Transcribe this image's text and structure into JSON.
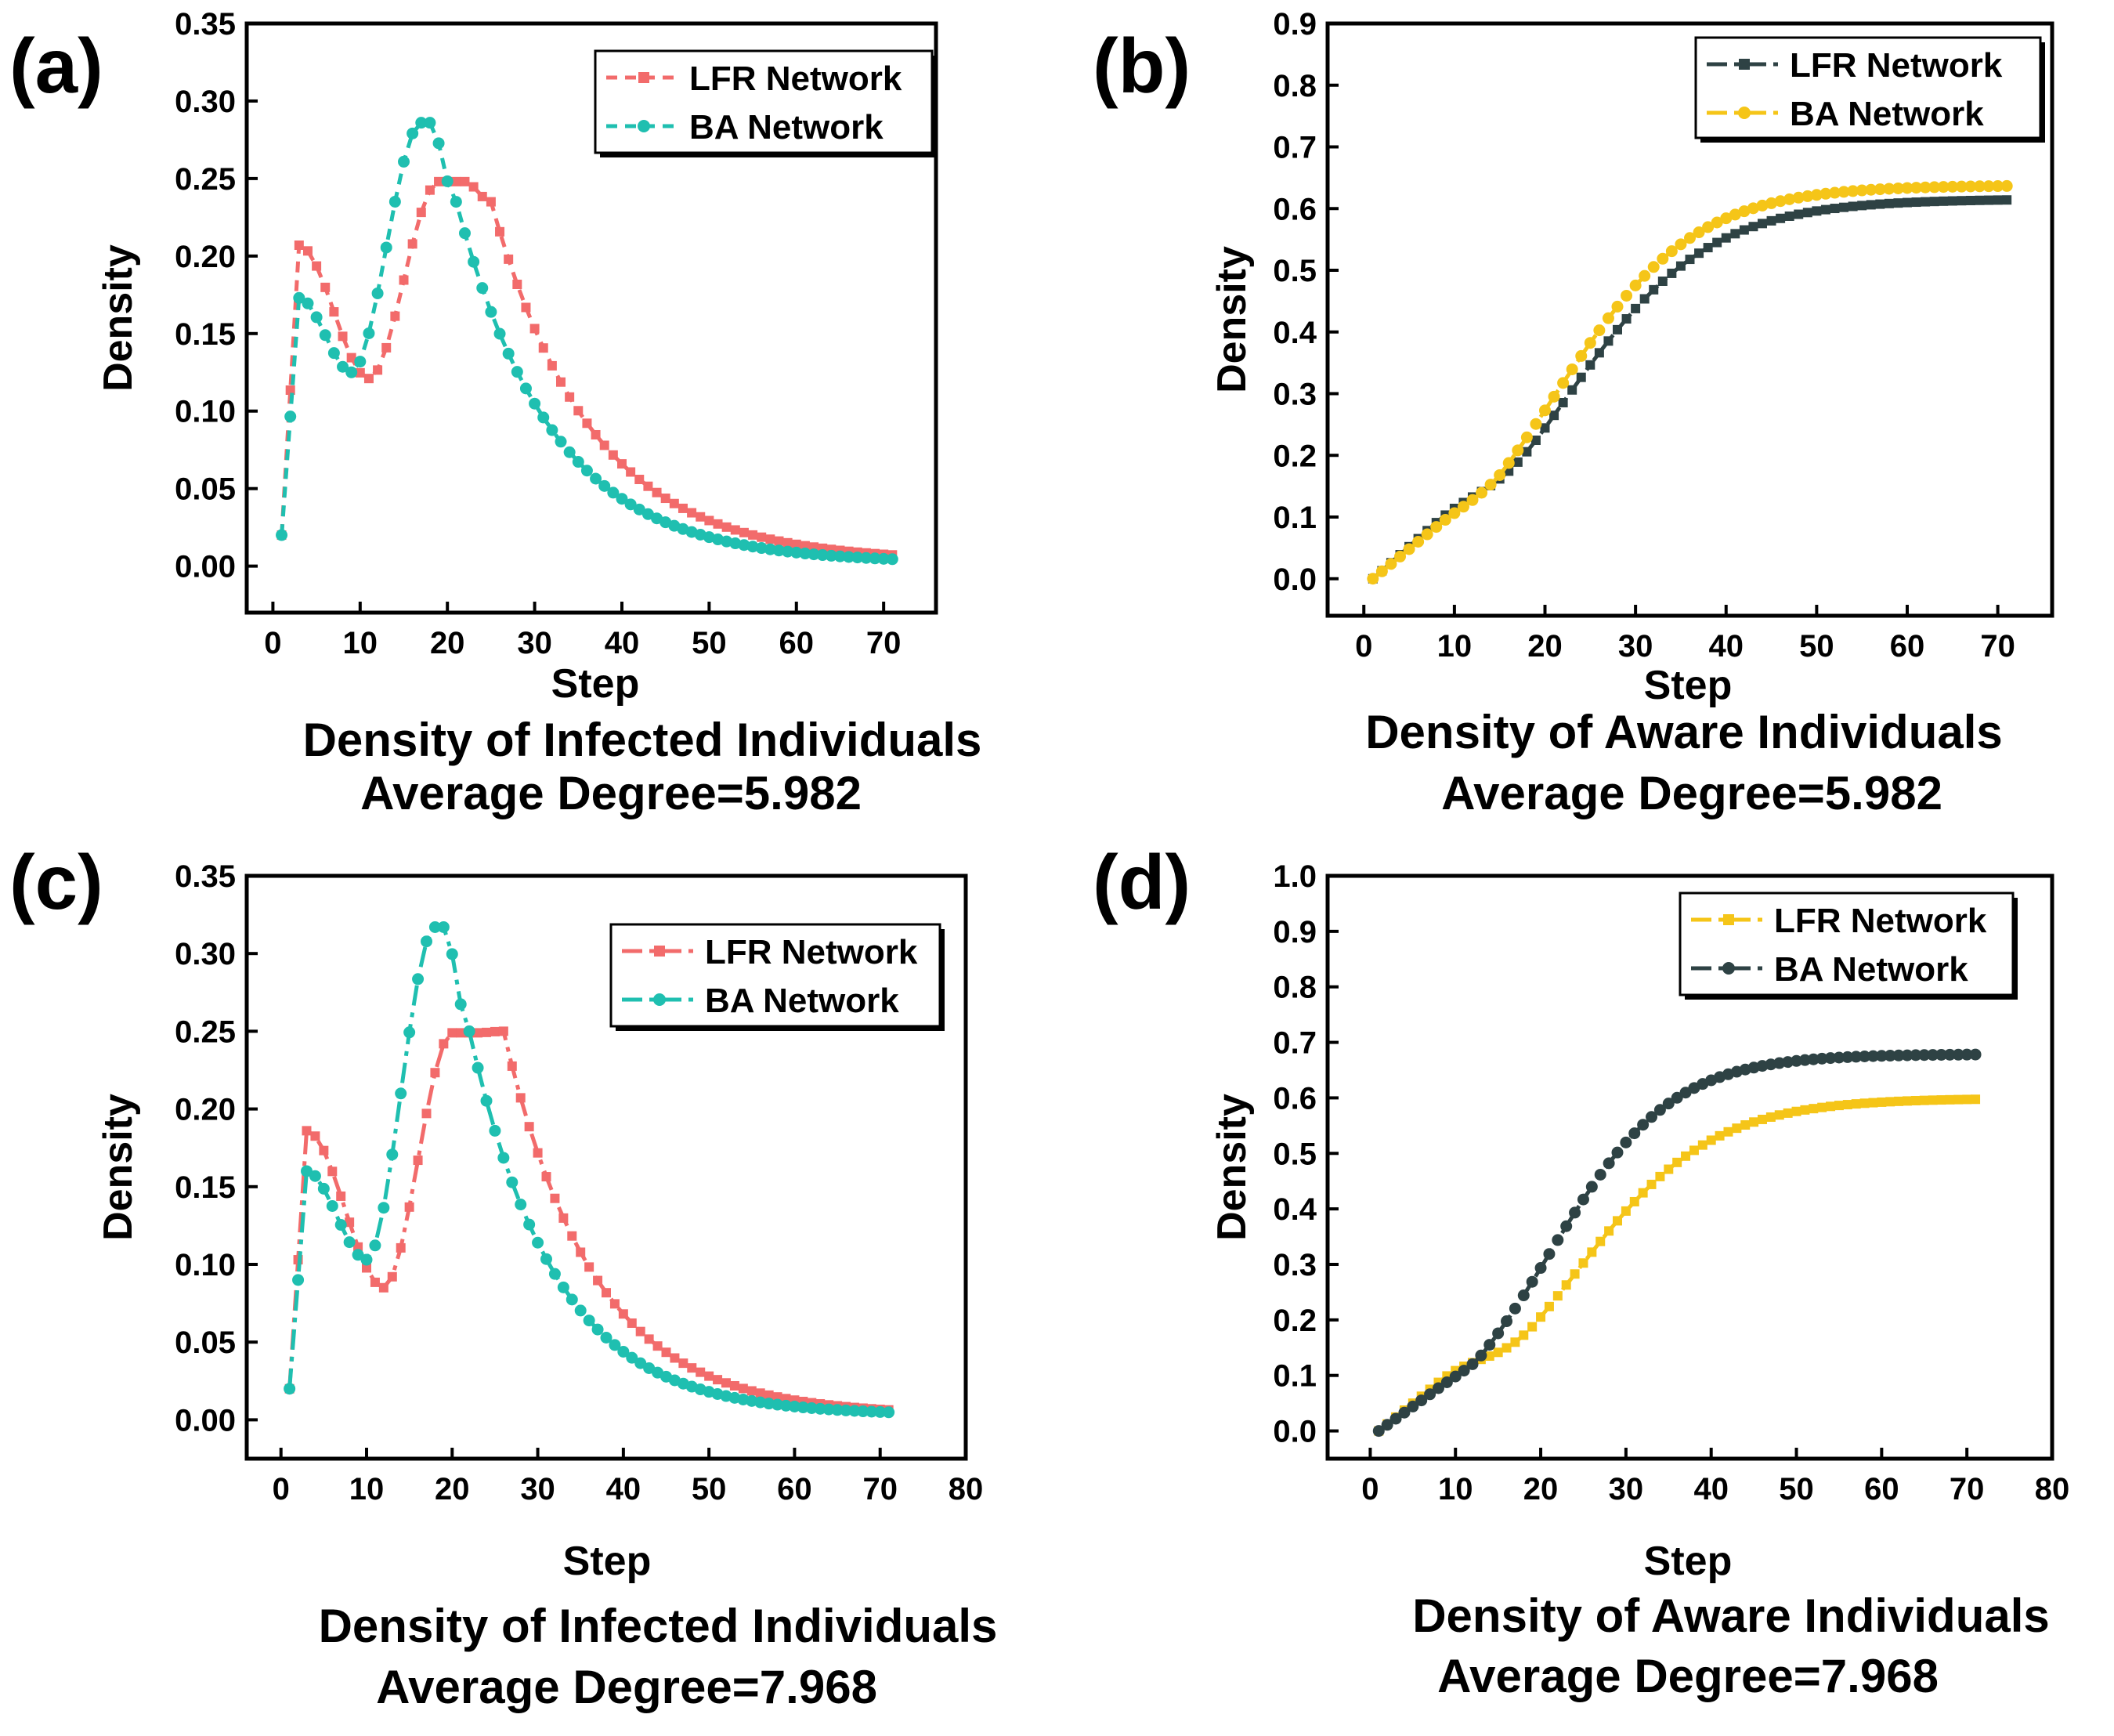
{
  "figure": {
    "panels": [
      {
        "label": "(a)",
        "chart_data": {
          "type": "line",
          "title": "Density of Infected Individuals",
          "subtitle": "Average Degree=5.982",
          "xlabel": "Step",
          "ylabel": "Density",
          "xlim": [
            -3,
            76
          ],
          "ylim": [
            -0.03,
            0.35
          ],
          "xticks": [
            0,
            10,
            20,
            30,
            40,
            50,
            60,
            70
          ],
          "xtick_labels": [
            "0",
            "10",
            "20",
            "30",
            "40",
            "50",
            "60",
            "70"
          ],
          "yticks": [
            0.0,
            0.05,
            0.1,
            0.15,
            0.2,
            0.25,
            0.3,
            0.35
          ],
          "ytick_labels": [
            "0.00",
            "0.05",
            "0.10",
            "0.15",
            "0.20",
            "0.25",
            "0.30",
            "0.35"
          ],
          "grid": false,
          "legend_position": "top-right",
          "curve": "infected",
          "series": [
            {
              "name": "LFR Network",
              "color": "#f26b6b",
              "marker": "square",
              "dash": "dash",
              "shape": {
                "start": 0.02,
                "early_peak": 0.207,
                "early_peak_step": 3,
                "dip": 0.121,
                "dip_step": 11,
                "peak": 0.248,
                "peak_step": 19,
                "peak_flat": 3,
                "end": 0.003,
                "decay_from": 0.235,
                "decay_tau": 11.5
              }
            },
            {
              "name": "BA Network",
              "color": "#1fbfb0",
              "marker": "circle",
              "dash": "dash",
              "shape": {
                "start": 0.02,
                "early_peak": 0.173,
                "early_peak_step": 3,
                "dip": 0.125,
                "dip_step": 9,
                "peak": 0.286,
                "peak_step": 17,
                "peak_flat": 1,
                "end": 0.002,
                "decay_from": 0.235,
                "decay_tau": 11.0
              }
            }
          ]
        }
      },
      {
        "label": "(b)",
        "chart_data": {
          "type": "line",
          "title": "Density of Aware Individuals",
          "subtitle": "Average Degree=5.982",
          "xlabel": "Step",
          "ylabel": "Density",
          "xlim": [
            -4,
            76
          ],
          "ylim": [
            -0.06,
            0.9
          ],
          "xticks": [
            0,
            10,
            20,
            30,
            40,
            50,
            60,
            70
          ],
          "xtick_labels": [
            "0",
            "10",
            "20",
            "30",
            "40",
            "50",
            "60",
            "70"
          ],
          "yticks": [
            0.0,
            0.1,
            0.2,
            0.3,
            0.4,
            0.5,
            0.6,
            0.7,
            0.8,
            0.9
          ],
          "ytick_labels": [
            "0.0",
            "0.1",
            "0.2",
            "0.3",
            "0.4",
            "0.5",
            "0.6",
            "0.7",
            "0.8",
            "0.9"
          ],
          "grid": false,
          "legend_position": "top-right",
          "curve": "aware",
          "series": [
            {
              "name": "LFR Network",
              "color": "#2e4244",
              "marker": "square",
              "dash": "dashdot",
              "shape": {
                "final": 0.66,
                "midpoint": 22.0,
                "rate": 0.125,
                "early_slope": 0.013
              }
            },
            {
              "name": "BA Network",
              "color": "#f5c518",
              "marker": "circle",
              "dash": "dashdot",
              "shape": {
                "final": 0.685,
                "midpoint": 21.0,
                "rate": 0.13,
                "early_slope": 0.012
              }
            }
          ]
        }
      },
      {
        "label": "(c)",
        "chart_data": {
          "type": "line",
          "title": "Density of Infected Individuals",
          "subtitle": "Average Degree=7.968",
          "xlabel": "Step",
          "ylabel": "Density",
          "xlim": [
            -4,
            80
          ],
          "ylim": [
            -0.025,
            0.35
          ],
          "xticks": [
            0,
            10,
            20,
            30,
            40,
            50,
            60,
            70,
            80
          ],
          "xtick_labels": [
            "0",
            "10",
            "20",
            "30",
            "40",
            "50",
            "60",
            "70",
            "80"
          ],
          "yticks": [
            0.0,
            0.05,
            0.1,
            0.15,
            0.2,
            0.25,
            0.3,
            0.35
          ],
          "ytick_labels": [
            "0.00",
            "0.05",
            "0.10",
            "0.15",
            "0.20",
            "0.25",
            "0.30",
            "0.35"
          ],
          "grid": false,
          "legend_position": "top-right",
          "curve": "infected",
          "series": [
            {
              "name": "LFR Network",
              "color": "#f26b6b",
              "marker": "square",
              "dash": "dashdot",
              "shape": {
                "start": 0.02,
                "early_peak": 0.186,
                "early_peak_step": 3,
                "dip": 0.085,
                "dip_step": 12,
                "peak": 0.249,
                "peak_step": 20,
                "peak_flat": 3,
                "end": 0.003,
                "decay_from": 0.25,
                "decay_tau": 10.5
              }
            },
            {
              "name": "BA Network",
              "color": "#1fbfb0",
              "marker": "circle",
              "dash": "dashdot",
              "shape": {
                "start": 0.02,
                "early_peak": 0.16,
                "early_peak_step": 3,
                "dip": 0.103,
                "dip_step": 10,
                "peak": 0.317,
                "peak_step": 18,
                "peak_flat": 1,
                "end": 0.003,
                "decay_from": 0.25,
                "decay_tau": 10.0
              }
            }
          ]
        }
      },
      {
        "label": "(d)",
        "chart_data": {
          "type": "line",
          "title": "Density of Aware Individuals",
          "subtitle": "Average Degree=7.968",
          "xlabel": "Step",
          "ylabel": "Density",
          "xlim": [
            -5,
            80
          ],
          "ylim": [
            -0.05,
            1.0
          ],
          "xticks": [
            0,
            10,
            20,
            30,
            40,
            50,
            60,
            70,
            80
          ],
          "xtick_labels": [
            "0",
            "10",
            "20",
            "30",
            "40",
            "50",
            "60",
            "70",
            "80"
          ],
          "yticks": [
            0.0,
            0.1,
            0.2,
            0.3,
            0.4,
            0.5,
            0.6,
            0.7,
            0.8,
            0.9,
            1.0
          ],
          "ytick_labels": [
            "0.0",
            "0.1",
            "0.2",
            "0.3",
            "0.4",
            "0.5",
            "0.6",
            "0.7",
            "0.8",
            "0.9",
            "1.0"
          ],
          "grid": false,
          "legend_position": "top-right",
          "curve": "aware",
          "series": [
            {
              "name": "LFR Network",
              "color": "#f5c518",
              "marker": "square",
              "dash": "dashdot",
              "shape": {
                "final": 0.633,
                "midpoint": 24.0,
                "rate": 0.125,
                "early_slope": 0.0125
              }
            },
            {
              "name": "BA Network",
              "color": "#2e4244",
              "marker": "circle",
              "dash": "dashdot",
              "shape": {
                "final": 0.72,
                "midpoint": 21.0,
                "rate": 0.14,
                "early_slope": 0.011
              }
            }
          ]
        }
      }
    ]
  }
}
